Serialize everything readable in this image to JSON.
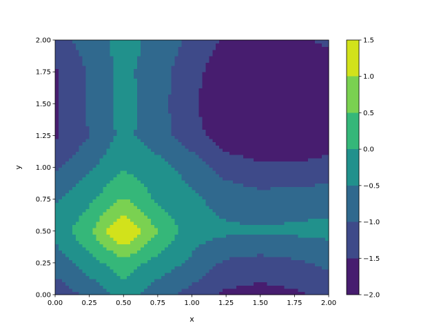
{
  "chart_data": {
    "type": "contour",
    "xlabel": "x",
    "ylabel": "y",
    "x": [
      0,
      0.25,
      0.5,
      0.75,
      1,
      1.25,
      1.5,
      1.75,
      2
    ],
    "y": [
      0,
      0.25,
      0.5,
      0.75,
      1,
      1.25,
      1.5,
      1.75,
      2
    ],
    "z": [
      [
        -1.3,
        -0.9,
        -0.3,
        -0.8,
        -1.2,
        -1.6,
        -1.7,
        -1.6,
        -1.3
      ],
      [
        -0.8,
        -0.2,
        0.3,
        -0.2,
        -0.6,
        -1.1,
        -1.2,
        -1.1,
        -0.9
      ],
      [
        -0.35,
        0.4,
        1.6,
        0.5,
        -0.3,
        -0.4,
        -0.45,
        -0.4,
        -0.35
      ],
      [
        -0.55,
        -0.1,
        0.55,
        -0.1,
        -0.4,
        -0.7,
        -0.8,
        -0.75,
        -0.7
      ],
      [
        -1.1,
        -0.6,
        -0.05,
        -0.3,
        -0.7,
        -1.2,
        -1.4,
        -1.4,
        -1.3
      ],
      [
        -1.55,
        -1.0,
        -0.35,
        -0.8,
        -1.3,
        -1.8,
        -2.0,
        -2.0,
        -1.8
      ],
      [
        -1.6,
        -0.9,
        -0.3,
        -0.8,
        -1.4,
        -2.0,
        -2.0,
        -2.0,
        -1.9
      ],
      [
        -1.55,
        -0.95,
        -0.35,
        -0.8,
        -1.3,
        -1.9,
        -2.0,
        -2.0,
        -1.8
      ],
      [
        -1.2,
        -0.8,
        -0.25,
        -0.7,
        -1.1,
        -1.6,
        -1.7,
        -1.6,
        -1.4
      ]
    ],
    "levels": [
      {
        "value": -2,
        "label": "−2.0"
      },
      {
        "value": -1.5,
        "label": "−1.5"
      },
      {
        "value": -1,
        "label": "−1.0"
      },
      {
        "value": -0.5,
        "label": "−0.5"
      },
      {
        "value": 0,
        "label": "0.0"
      },
      {
        "value": 0.5,
        "label": "0.5"
      },
      {
        "value": 1,
        "label": "1.0"
      },
      {
        "value": 1.5,
        "label": "1.5"
      }
    ],
    "colors": [
      "#471d6f",
      "#3e4a89",
      "#30698e",
      "#21918c",
      "#35b779",
      "#7ad151",
      "#d2e21b"
    ],
    "xlim": [
      0,
      2
    ],
    "ylim": [
      0,
      2
    ],
    "xticks": [
      {
        "value": 0,
        "label": "0.00"
      },
      {
        "value": 0.25,
        "label": "0.25"
      },
      {
        "value": 0.5,
        "label": "0.50"
      },
      {
        "value": 0.75,
        "label": "0.75"
      },
      {
        "value": 1,
        "label": "1.00"
      },
      {
        "value": 1.25,
        "label": "1.25"
      },
      {
        "value": 1.5,
        "label": "1.50"
      },
      {
        "value": 1.75,
        "label": "1.75"
      },
      {
        "value": 2,
        "label": "2.00"
      }
    ],
    "yticks": [
      {
        "value": 0,
        "label": "0.00"
      },
      {
        "value": 0.25,
        "label": "0.25"
      },
      {
        "value": 0.5,
        "label": "0.50"
      },
      {
        "value": 0.75,
        "label": "0.75"
      },
      {
        "value": 1,
        "label": "1.00"
      },
      {
        "value": 1.25,
        "label": "1.25"
      },
      {
        "value": 1.5,
        "label": "1.50"
      },
      {
        "value": 1.75,
        "label": "1.75"
      },
      {
        "value": 2,
        "label": "2.00"
      }
    ]
  }
}
